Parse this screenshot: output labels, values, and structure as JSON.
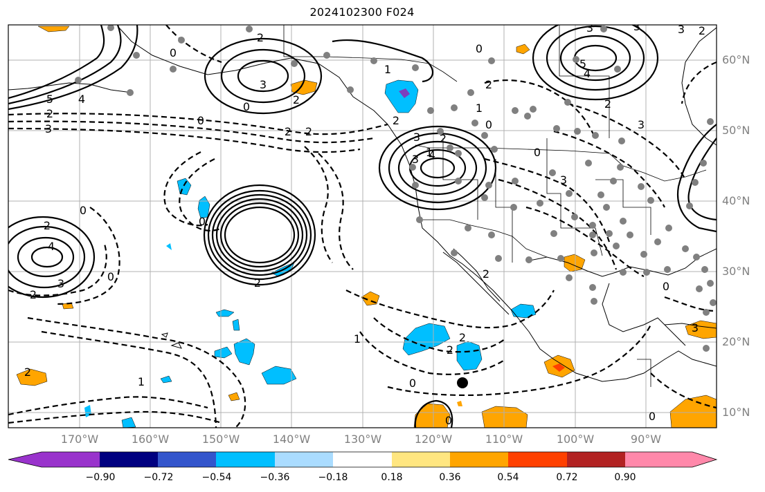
{
  "title": "2024102300 F024",
  "lat_labels": [
    "60°N",
    "50°N",
    "40°N",
    "30°N",
    "20°N",
    "10°N"
  ],
  "lon_labels": [
    "170°W",
    "160°W",
    "150°W",
    "140°W",
    "130°W",
    "120°W",
    "110°W",
    "100°W",
    "90°W"
  ],
  "colorbar": {
    "colors": [
      "#9933cc",
      "#000080",
      "#3355cc",
      "#00bfff",
      "#aadcff",
      "#ffffff",
      "#ffe680",
      "#ffa500",
      "#ff4000",
      "#b22222",
      "#ff88aa"
    ],
    "ticks": [
      "−0.90",
      "−0.72",
      "−0.54",
      "−0.36",
      "−0.18",
      "0.18",
      "0.36",
      "0.54",
      "0.72",
      "0.90"
    ]
  },
  "contour_labels": {
    "positive": [
      "5",
      "4",
      "3",
      "2",
      "3",
      "2",
      "2",
      "1",
      "5",
      "4",
      "4",
      "3",
      "3",
      "2",
      "4",
      "3",
      "2",
      "2",
      "1",
      "2",
      "2",
      "2"
    ],
    "zero": [
      "0",
      "0",
      "0",
      "0",
      "0",
      "0",
      "0",
      "0",
      "0",
      "0",
      "0",
      "0",
      "0"
    ],
    "negative": [
      "3",
      "3",
      "2",
      "2",
      "3",
      "2",
      "2",
      "2",
      "2",
      "1",
      "1",
      "1",
      "2",
      "3",
      "3",
      "3",
      "2"
    ]
  }
}
